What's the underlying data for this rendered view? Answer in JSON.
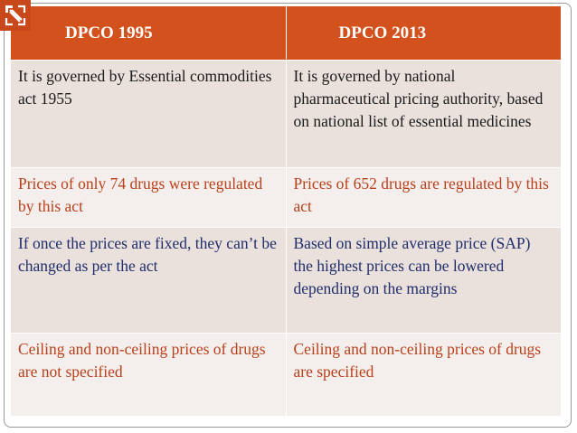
{
  "logo": {
    "icon": "publisher-logo-icon",
    "color": "#c8481c"
  },
  "table": {
    "headers": [
      "DPCO 1995",
      "DPCO 2013"
    ],
    "rows": [
      [
        "It is governed by Essential commodities act 1955",
        "It is governed by national pharmaceutical pricing authority, based on national list of essential medicines"
      ],
      [
        "Prices of only 74 drugs were regulated by this act",
        "Prices of 652 drugs are regulated by this act"
      ],
      [
        "If once the prices are fixed, they can’t be changed as per the act",
        "Based on simple average price (SAP) the highest prices can be lowered depending on the margins"
      ],
      [
        "Ceiling and non-ceiling prices of drugs are not specified",
        "Ceiling and non-ceiling prices of drugs are specified"
      ]
    ]
  },
  "colors": {
    "header_bg": "#d2511d",
    "row_dark_bg": "#eae0dc",
    "row_light_bg": "#f4efed",
    "text_dark": "#1a1a1a",
    "text_orange": "#b8401a",
    "text_navy": "#1f2e6b"
  }
}
